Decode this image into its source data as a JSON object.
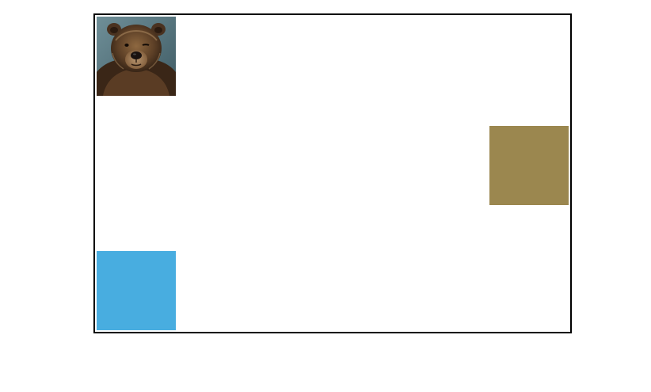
{
  "game": {
    "pieces": [
      {
        "kind": "image",
        "subject": "grizzly-bear",
        "icon": "bear-icon"
      },
      {
        "kind": "color-block",
        "color": "#9B874F"
      },
      {
        "kind": "color-block",
        "color": "#48ADE0"
      }
    ],
    "colors": {
      "board_border": "#000000",
      "board_background": "#FFFFFF",
      "bear_backdrop": "#5E7E88",
      "bear_fur_dark": "#3A2617",
      "bear_fur_mid": "#6B4A2E",
      "bear_fur_light": "#A8855E"
    }
  }
}
